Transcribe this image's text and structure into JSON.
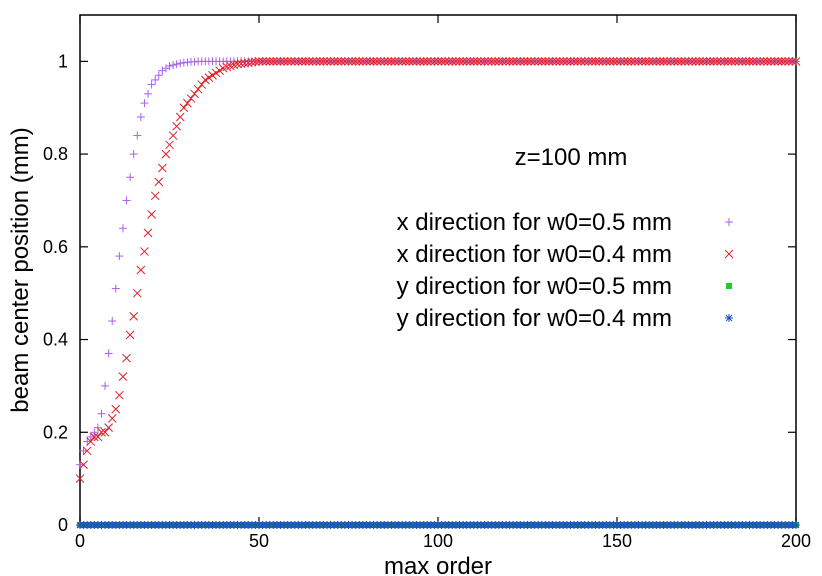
{
  "chart_data": {
    "type": "scatter",
    "title": "",
    "xlabel": "max order",
    "ylabel": "beam center position (mm)",
    "xlim": [
      0,
      200
    ],
    "ylim": [
      0,
      1.1
    ],
    "xticks": [
      0,
      50,
      100,
      150,
      200
    ],
    "yticks": [
      0,
      0.2,
      0.4,
      0.6,
      0.8,
      1
    ],
    "grid": false,
    "legend_placement": "center-right",
    "annotation": "z=100 mm",
    "series": [
      {
        "name": "x direction for w0=0.5 mm",
        "marker": "plus",
        "color": "#a95ff0",
        "x": [
          0,
          1,
          2,
          3,
          4,
          5,
          6,
          7,
          8,
          9,
          10,
          11,
          12,
          13,
          14,
          15,
          16,
          17,
          18,
          19,
          20,
          21,
          22,
          23,
          24,
          25,
          26,
          27,
          28,
          29,
          30,
          31,
          32,
          33,
          34,
          35,
          36,
          37,
          38,
          39,
          40,
          45,
          50,
          60,
          80,
          100,
          120,
          140,
          160,
          180,
          200
        ],
        "y": [
          0.13,
          0.16,
          0.18,
          0.19,
          0.2,
          0.21,
          0.24,
          0.3,
          0.37,
          0.44,
          0.51,
          0.58,
          0.64,
          0.7,
          0.75,
          0.8,
          0.84,
          0.88,
          0.91,
          0.93,
          0.95,
          0.96,
          0.97,
          0.98,
          0.985,
          0.99,
          0.992,
          0.994,
          0.996,
          0.997,
          0.998,
          0.999,
          0.999,
          1,
          1,
          1,
          1,
          1,
          1,
          1,
          1,
          1,
          1,
          1,
          1,
          1,
          1,
          1,
          1,
          1,
          1
        ]
      },
      {
        "name": "x direction for w0=0.4 mm",
        "marker": "x",
        "color": "#e0202a",
        "x": [
          0,
          1,
          2,
          3,
          4,
          5,
          6,
          7,
          8,
          9,
          10,
          11,
          12,
          13,
          14,
          15,
          16,
          17,
          18,
          19,
          20,
          21,
          22,
          23,
          24,
          25,
          26,
          27,
          28,
          29,
          30,
          31,
          32,
          33,
          34,
          35,
          36,
          37,
          38,
          39,
          40,
          41,
          42,
          43,
          44,
          45,
          46,
          47,
          48,
          49,
          50,
          55,
          60,
          70,
          80,
          90,
          100,
          120,
          140,
          160,
          180,
          200
        ],
        "y": [
          0.1,
          0.13,
          0.16,
          0.18,
          0.19,
          0.19,
          0.2,
          0.2,
          0.21,
          0.23,
          0.25,
          0.28,
          0.32,
          0.36,
          0.41,
          0.45,
          0.5,
          0.55,
          0.59,
          0.63,
          0.67,
          0.71,
          0.74,
          0.77,
          0.8,
          0.82,
          0.84,
          0.86,
          0.88,
          0.9,
          0.91,
          0.92,
          0.93,
          0.94,
          0.95,
          0.96,
          0.965,
          0.97,
          0.975,
          0.98,
          0.985,
          0.988,
          0.99,
          0.992,
          0.994,
          0.995,
          0.996,
          0.997,
          0.998,
          0.999,
          1,
          1,
          1,
          1,
          1,
          1,
          1,
          1,
          1,
          1,
          1,
          1
        ]
      },
      {
        "name": "y direction for w0=0.5 mm",
        "marker": "square",
        "color": "#22cc22",
        "x": [
          0,
          200
        ],
        "y": [
          0,
          0
        ]
      },
      {
        "name": "y direction for w0=0.4 mm",
        "marker": "asterisk",
        "color": "#1a4fc4",
        "x": [
          0,
          200
        ],
        "y": [
          0,
          0
        ]
      }
    ]
  }
}
